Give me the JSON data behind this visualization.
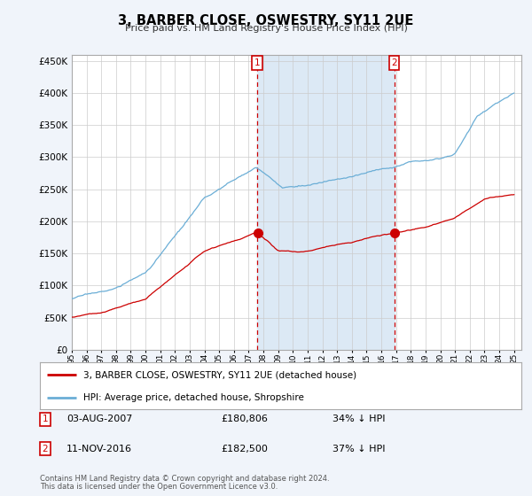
{
  "title": "3, BARBER CLOSE, OSWESTRY, SY11 2UE",
  "subtitle": "Price paid vs. HM Land Registry's House Price Index (HPI)",
  "ylim": [
    0,
    460000
  ],
  "xlim_start": 1995.0,
  "xlim_end": 2025.5,
  "hpi_color": "#6baed6",
  "price_color": "#cc0000",
  "marker1_date": 2007.58,
  "marker1_price": 180806,
  "marker2_date": 2016.87,
  "marker2_price": 182500,
  "legend_line1": "3, BARBER CLOSE, OSWESTRY, SY11 2UE (detached house)",
  "legend_line2": "HPI: Average price, detached house, Shropshire",
  "footer1": "Contains HM Land Registry data © Crown copyright and database right 2024.",
  "footer2": "This data is licensed under the Open Government Licence v3.0.",
  "background_color": "#f0f4fa",
  "plot_bg_color": "#ffffff",
  "grid_color": "#cccccc",
  "shade_color": "#dce9f5"
}
